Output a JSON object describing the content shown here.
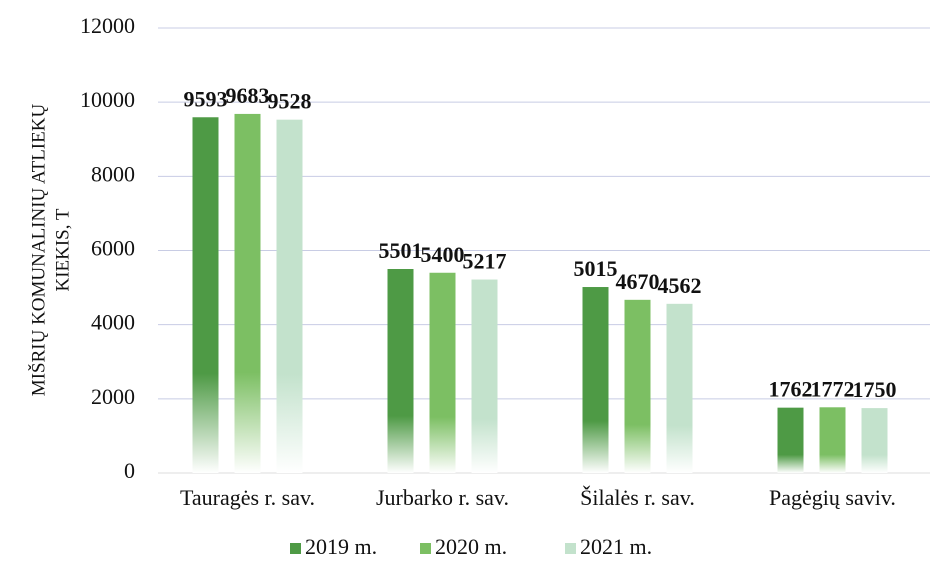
{
  "chart_data": {
    "type": "bar",
    "ylabel": [
      "MIŠRIŲ KOMUNALINIŲ ATLIEKŲ",
      "KIEKIS, T"
    ],
    "categories": [
      "Tauragės r. sav.",
      "Jurbarko r. sav.",
      "Šilalės r. sav.",
      "Pagėgių saviv."
    ],
    "series": [
      {
        "name": "2019 m.",
        "color": "#4e9a45",
        "values": [
          9593,
          5501,
          5015,
          1762
        ]
      },
      {
        "name": "2020 m.",
        "color": "#7cbf63",
        "values": [
          9683,
          5400,
          4670,
          1772
        ]
      },
      {
        "name": "2021 m.",
        "color": "#c3e2cc",
        "values": [
          9528,
          5217,
          4562,
          1750
        ]
      }
    ],
    "ylim": [
      0,
      12000
    ],
    "yticks": [
      0,
      2000,
      4000,
      6000,
      8000,
      10000,
      12000
    ],
    "grid": true,
    "legend": "bottom"
  }
}
